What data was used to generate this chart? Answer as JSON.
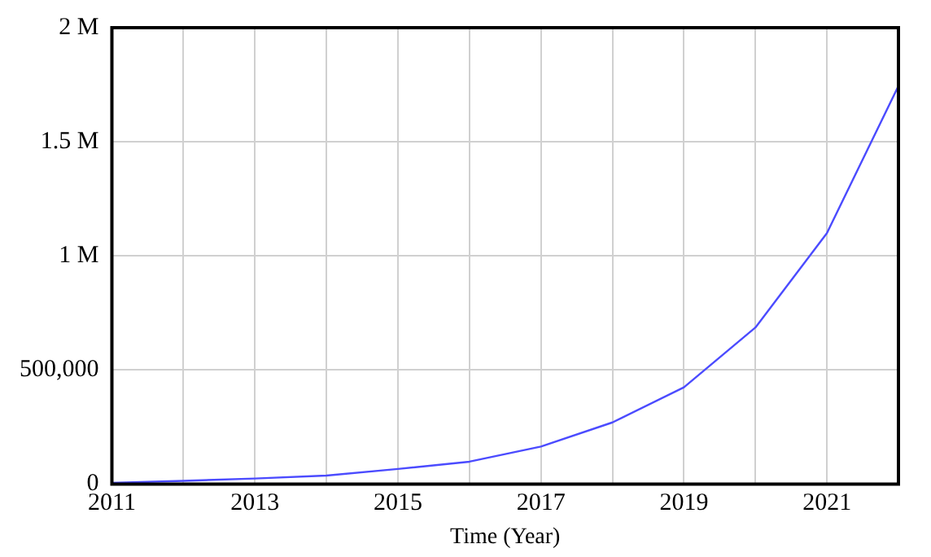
{
  "chart_data": {
    "type": "line",
    "xlabel": "Time (Year)",
    "x": [
      2011,
      2012,
      2013,
      2014,
      2015,
      2016,
      2017,
      2018,
      2019,
      2020,
      2021,
      2022
    ],
    "series": [
      {
        "color": "#4b4bff",
        "values": [
          5000,
          14000,
          24000,
          37000,
          66000,
          98000,
          164000,
          270000,
          424000,
          686000,
          1100000,
          1745000
        ]
      }
    ],
    "xlim": [
      2011,
      2022
    ],
    "xticks": [
      2011,
      {
        "value": 2012,
        "label": null
      },
      2013,
      {
        "value": 2014,
        "label": null
      },
      2015,
      {
        "value": 2016,
        "label": null
      },
      2017,
      {
        "value": 2018,
        "label": null
      },
      2019,
      {
        "value": 2020,
        "label": null
      },
      2021,
      {
        "value": 2022,
        "label": null
      }
    ],
    "ylim": [
      0,
      2000000
    ],
    "yticks": [
      {
        "value": 0,
        "label": "0"
      },
      {
        "value": 500000,
        "label": "500,000"
      },
      {
        "value": 1000000,
        "label": "1 M"
      },
      {
        "value": 1500000,
        "label": "1.5 M"
      },
      {
        "value": 2000000,
        "label": "2 M"
      }
    ],
    "grid": true,
    "legend": false,
    "marker": "none",
    "line_style": "solid"
  }
}
